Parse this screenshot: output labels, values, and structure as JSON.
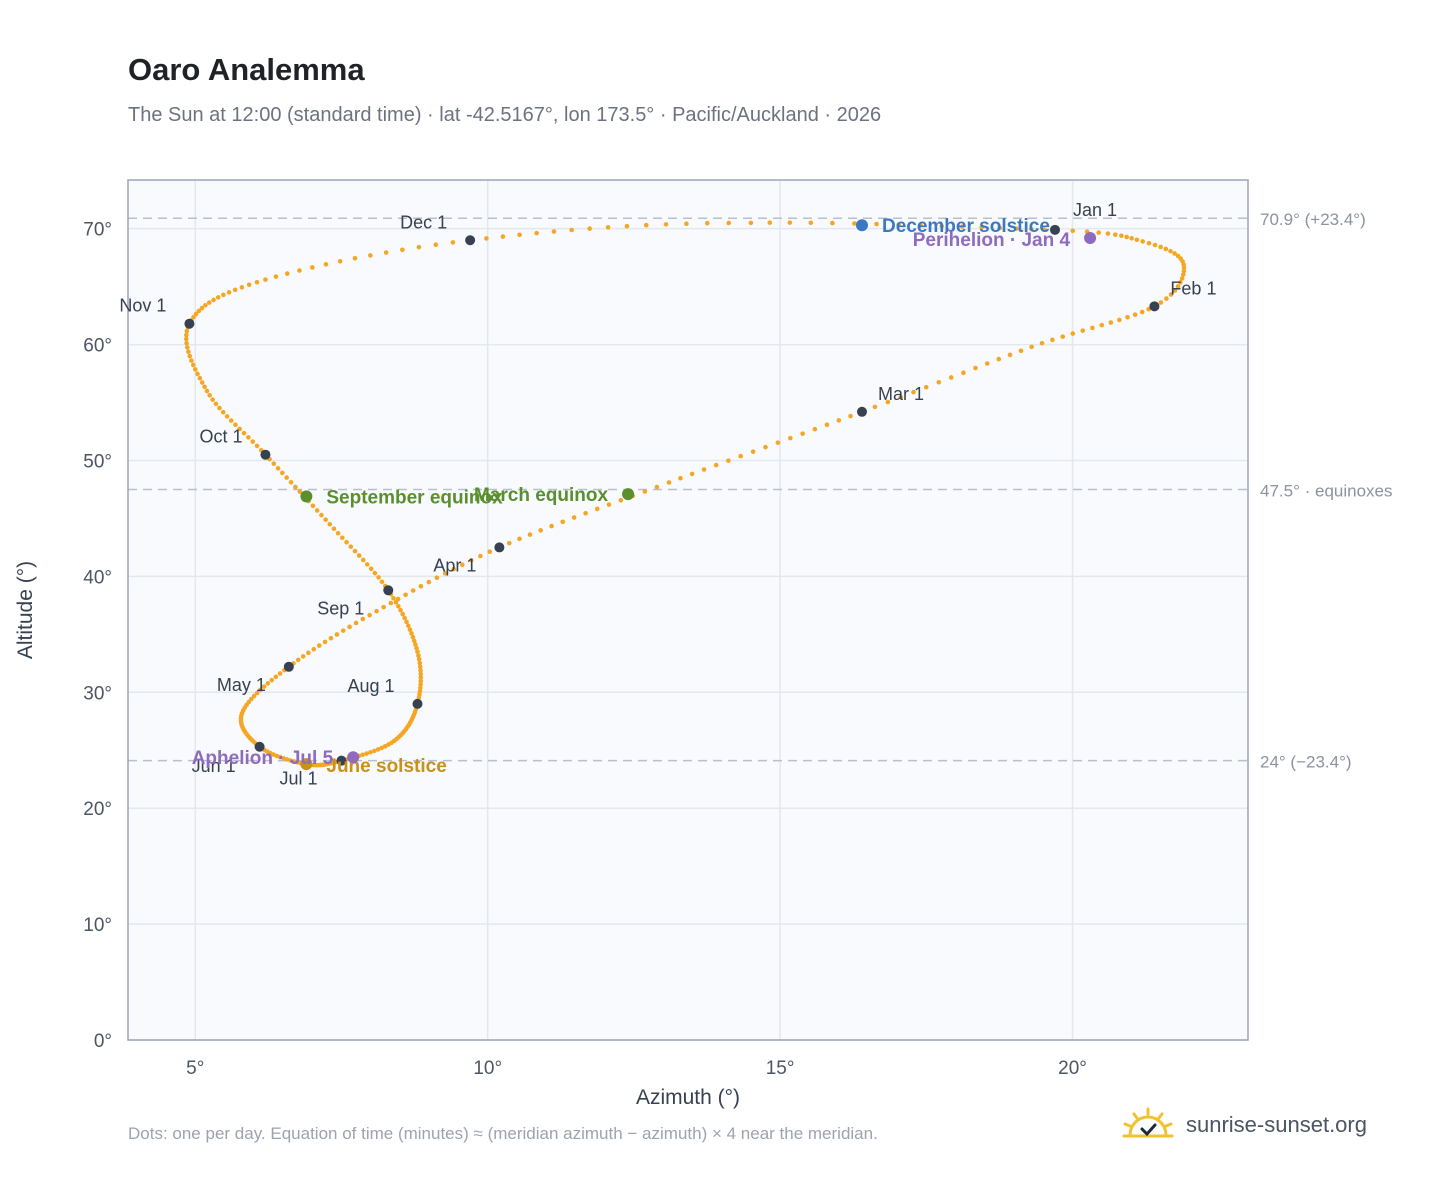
{
  "header": {
    "title": "Oaro Analemma",
    "subtitle": "The Sun at 12:00 (standard time) · lat -42.5167°, lon 173.5° · Pacific/Auckland · 2026"
  },
  "footer": {
    "note": "Dots: one per day. Equation of time (minutes) ≈ (meridian azimuth − azimuth) × 4 near the meridian.",
    "brand": "sunrise-sunset.org"
  },
  "colors": {
    "curve": "#f5a623",
    "month_dot": "#374151",
    "december_solstice": "#3a78c2",
    "june_solstice": "#c9901b",
    "equinox": "#5a8f2e",
    "perihelion_aphelion": "#8e6bbf",
    "plot_bg": "#f8fafd"
  },
  "chart_data": {
    "type": "scatter",
    "title": "Oaro Analemma",
    "xlabel": "Azimuth (°)",
    "ylabel": "Altitude (°)",
    "xlim": [
      3.85,
      23.0
    ],
    "ylim": [
      0,
      74.2
    ],
    "x_ticks": [
      {
        "value": 5,
        "label": "5°"
      },
      {
        "value": 10,
        "label": "10°"
      },
      {
        "value": 15,
        "label": "15°"
      },
      {
        "value": 20,
        "label": "20°"
      }
    ],
    "y_ticks": [
      {
        "value": 0,
        "label": "0°"
      },
      {
        "value": 10,
        "label": "10°"
      },
      {
        "value": 20,
        "label": "20°"
      },
      {
        "value": 30,
        "label": "30°"
      },
      {
        "value": 40,
        "label": "40°"
      },
      {
        "value": 50,
        "label": "50°"
      },
      {
        "value": 60,
        "label": "60°"
      },
      {
        "value": 70,
        "label": "70°"
      }
    ],
    "grid": true,
    "reference_lines": [
      {
        "y": 70.9,
        "label": "70.9° (+23.4°)"
      },
      {
        "y": 47.5,
        "label": "47.5° · equinoxes"
      },
      {
        "y": 24.1,
        "label": "24° (−23.4°)"
      }
    ],
    "month_markers": [
      {
        "label": "Jan 1",
        "x": 19.7,
        "y": 69.9
      },
      {
        "label": "Feb 1",
        "x": 21.4,
        "y": 63.3
      },
      {
        "label": "Mar 1",
        "x": 16.4,
        "y": 54.2
      },
      {
        "label": "Apr 1",
        "x": 10.2,
        "y": 42.5
      },
      {
        "label": "May 1",
        "x": 6.6,
        "y": 32.2
      },
      {
        "label": "Jun 1",
        "x": 6.1,
        "y": 25.3
      },
      {
        "label": "Jul 1",
        "x": 7.5,
        "y": 24.1
      },
      {
        "label": "Aug 1",
        "x": 8.8,
        "y": 29.0
      },
      {
        "label": "Sep 1",
        "x": 8.3,
        "y": 38.8
      },
      {
        "label": "Oct 1",
        "x": 6.2,
        "y": 50.5
      },
      {
        "label": "Nov 1",
        "x": 4.9,
        "y": 61.8
      },
      {
        "label": "Dec 1",
        "x": 9.7,
        "y": 69.0
      }
    ],
    "events": [
      {
        "label": "December solstice",
        "x": 16.4,
        "y": 70.3,
        "color_key": "december_solstice"
      },
      {
        "label": "Perihelion · Jan 4",
        "x": 20.3,
        "y": 69.2,
        "color_key": "perihelion_aphelion"
      },
      {
        "label": "March equinox",
        "x": 12.4,
        "y": 47.1,
        "color_key": "equinox"
      },
      {
        "label": "September equinox",
        "x": 6.9,
        "y": 46.9,
        "color_key": "equinox"
      },
      {
        "label": "June solstice",
        "x": 6.9,
        "y": 23.8,
        "color_key": "june_solstice"
      },
      {
        "label": "Aphelion · Jul 5",
        "x": 7.7,
        "y": 24.4,
        "color_key": "perihelion_aphelion"
      }
    ],
    "path_anchor_days": [
      {
        "day": 0,
        "x": 19.7,
        "y": 69.9
      },
      {
        "day": 10,
        "x": 21.2,
        "y": 68.9
      },
      {
        "day": 20,
        "x": 21.9,
        "y": 66.9
      },
      {
        "day": 31,
        "x": 21.4,
        "y": 63.3
      },
      {
        "day": 45,
        "x": 19.3,
        "y": 59.8
      },
      {
        "day": 59,
        "x": 16.4,
        "y": 54.2
      },
      {
        "day": 75,
        "x": 13.1,
        "y": 48.1
      },
      {
        "day": 90,
        "x": 10.2,
        "y": 42.5
      },
      {
        "day": 105,
        "x": 8.1,
        "y": 37.0
      },
      {
        "day": 120,
        "x": 6.6,
        "y": 32.2
      },
      {
        "day": 135,
        "x": 5.8,
        "y": 28.2
      },
      {
        "day": 151,
        "x": 6.1,
        "y": 25.3
      },
      {
        "day": 166,
        "x": 6.9,
        "y": 23.8
      },
      {
        "day": 181,
        "x": 7.5,
        "y": 24.1
      },
      {
        "day": 196,
        "x": 8.4,
        "y": 25.8
      },
      {
        "day": 212,
        "x": 8.8,
        "y": 29.0
      },
      {
        "day": 227,
        "x": 8.8,
        "y": 33.5
      },
      {
        "day": 243,
        "x": 8.3,
        "y": 38.8
      },
      {
        "day": 258,
        "x": 7.3,
        "y": 44.5
      },
      {
        "day": 273,
        "x": 6.2,
        "y": 50.5
      },
      {
        "day": 288,
        "x": 5.2,
        "y": 56.0
      },
      {
        "day": 304,
        "x": 4.9,
        "y": 61.8
      },
      {
        "day": 320,
        "x": 6.2,
        "y": 65.6
      },
      {
        "day": 334,
        "x": 9.7,
        "y": 69.0
      },
      {
        "day": 349,
        "x": 14.5,
        "y": 70.5
      },
      {
        "day": 365,
        "x": 19.7,
        "y": 69.9
      }
    ]
  }
}
